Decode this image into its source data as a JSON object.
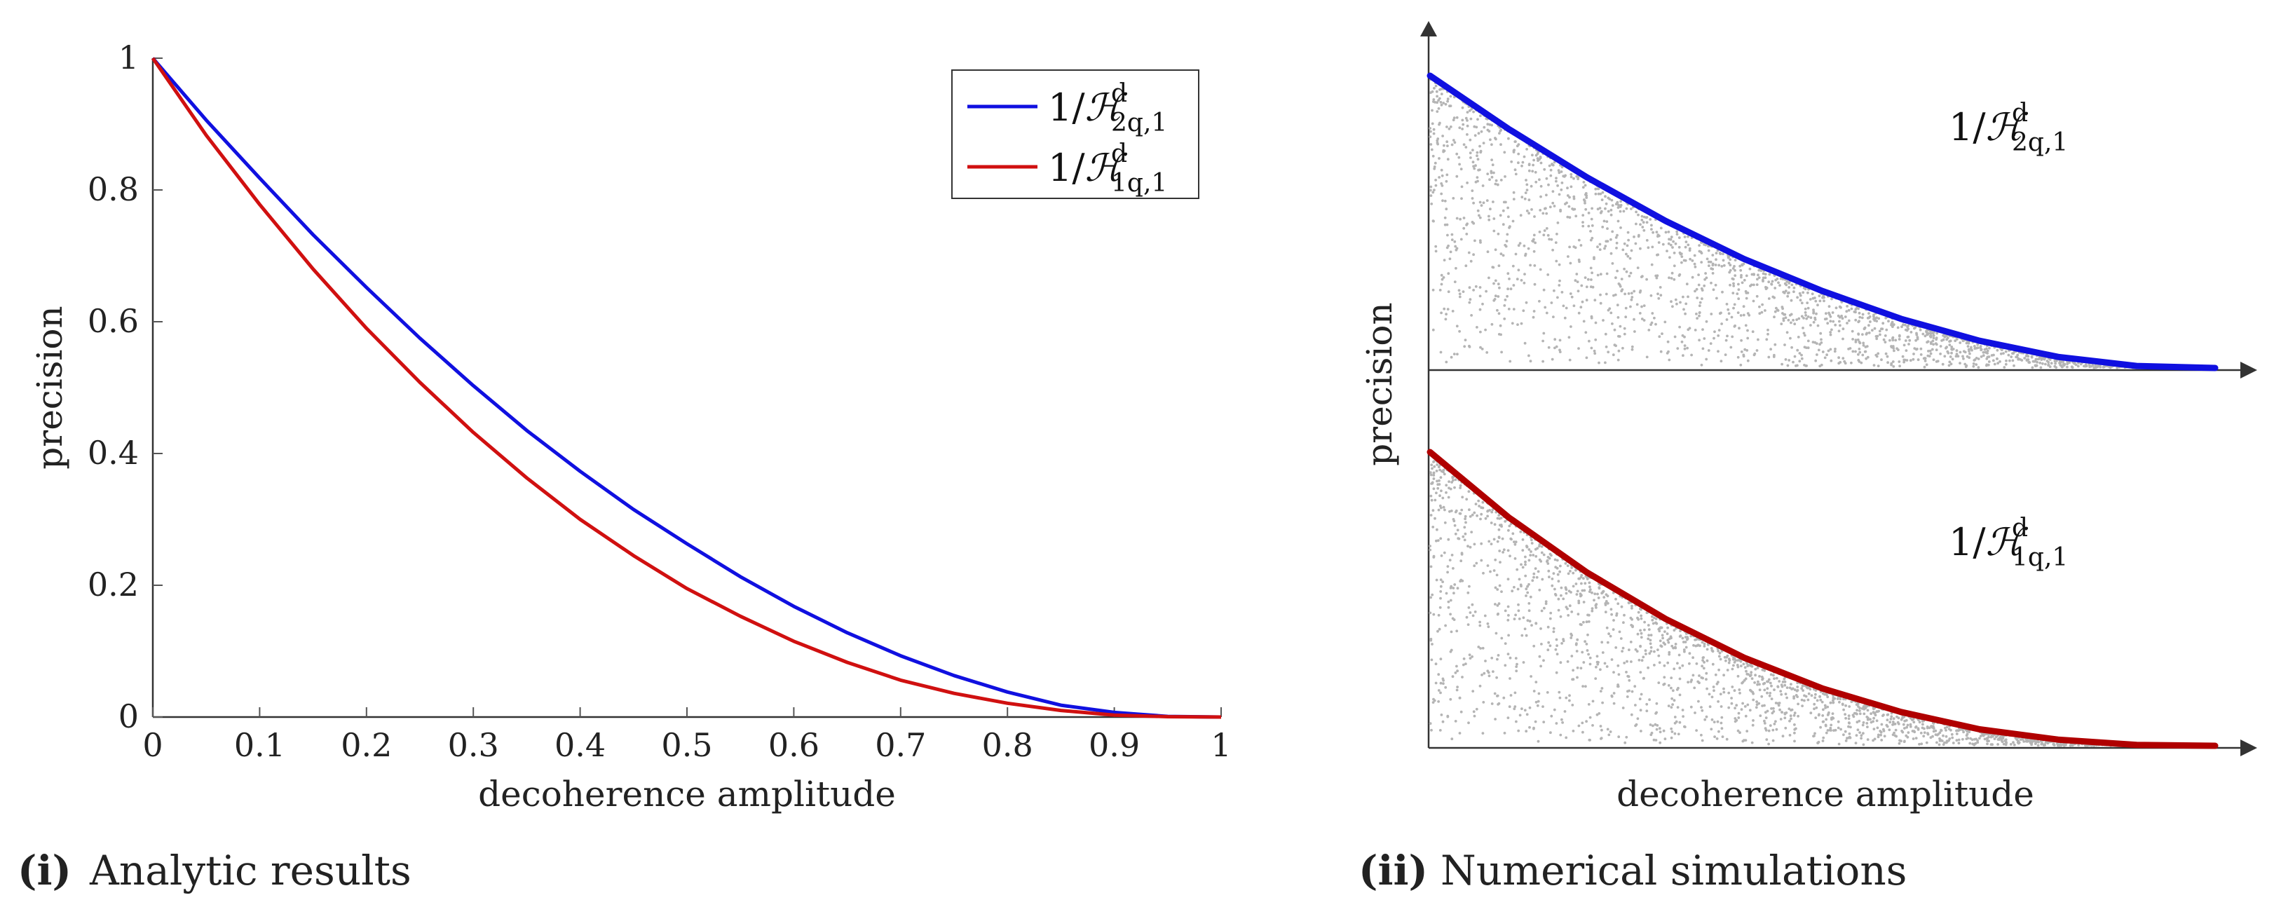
{
  "chart_data": [
    {
      "type": "line",
      "caption_number": "(i)",
      "caption": "Analytic results",
      "xlabel": "decoherence amplitude",
      "ylabel": "precision",
      "xlim": [
        0,
        1
      ],
      "ylim": [
        0,
        1
      ],
      "x_ticks": [
        "0",
        "0.1",
        "0.2",
        "0.3",
        "0.4",
        "0.5",
        "0.6",
        "0.7",
        "0.8",
        "0.9",
        "1"
      ],
      "y_ticks": [
        "0",
        "0.2",
        "0.4",
        "0.6",
        "0.8",
        "1"
      ],
      "legend_position": "top-right",
      "series": [
        {
          "name": "1/H^d_{2q,1}",
          "label_main": "1/",
          "label_symbol": "ℋ",
          "label_sup": "d",
          "label_sub": "2q,1",
          "color": "#1010e0",
          "x": [
            0,
            0.05,
            0.1,
            0.15,
            0.2,
            0.25,
            0.3,
            0.35,
            0.4,
            0.45,
            0.5,
            0.55,
            0.6,
            0.65,
            0.7,
            0.75,
            0.8,
            0.85,
            0.9,
            0.95,
            1
          ],
          "y": [
            1,
            0.906,
            0.818,
            0.732,
            0.652,
            0.575,
            0.503,
            0.435,
            0.373,
            0.315,
            0.263,
            0.213,
            0.168,
            0.128,
            0.093,
            0.063,
            0.038,
            0.018,
            0.007,
            0.001,
            0
          ]
        },
        {
          "name": "1/H^d_{1q,1}",
          "label_main": "1/",
          "label_symbol": "ℋ",
          "label_sup": "d",
          "label_sub": "1q,1",
          "color": "#d01010",
          "x": [
            0,
            0.05,
            0.1,
            0.15,
            0.2,
            0.25,
            0.3,
            0.35,
            0.4,
            0.45,
            0.5,
            0.55,
            0.6,
            0.65,
            0.7,
            0.75,
            0.8,
            0.85,
            0.9,
            0.95,
            1
          ],
          "y": [
            1,
            0.883,
            0.778,
            0.68,
            0.59,
            0.508,
            0.432,
            0.363,
            0.3,
            0.245,
            0.195,
            0.153,
            0.115,
            0.083,
            0.056,
            0.036,
            0.021,
            0.01,
            0.003,
            0.0005,
            0
          ]
        }
      ]
    },
    {
      "type": "scatter",
      "caption_number": "(ii)",
      "caption": "Numerical simulations",
      "xlabel": "decoherence amplitude",
      "ylabel": "precision",
      "panels": [
        {
          "name": "1/H^d_{2q,1}",
          "label_main": "1/",
          "label_symbol": "ℋ",
          "label_sup": "d",
          "label_sub": "2q,1",
          "bound_color": "#1010e0",
          "x": [
            0,
            0.1,
            0.2,
            0.3,
            0.4,
            0.5,
            0.6,
            0.7,
            0.8,
            0.9,
            1
          ],
          "bound": [
            1,
            0.818,
            0.652,
            0.503,
            0.373,
            0.263,
            0.168,
            0.093,
            0.038,
            0.007,
            0
          ],
          "point_color": "#b4b4b4"
        },
        {
          "name": "1/H^d_{1q,1}",
          "label_main": "1/",
          "label_symbol": "ℋ",
          "label_sup": "d",
          "label_sub": "1q,1",
          "bound_color": "#b00000",
          "x": [
            0,
            0.1,
            0.2,
            0.3,
            0.4,
            0.5,
            0.6,
            0.7,
            0.8,
            0.9,
            1
          ],
          "bound": [
            1,
            0.778,
            0.59,
            0.432,
            0.3,
            0.195,
            0.115,
            0.056,
            0.021,
            0.003,
            0
          ],
          "point_color": "#b4b4b4"
        }
      ]
    }
  ]
}
